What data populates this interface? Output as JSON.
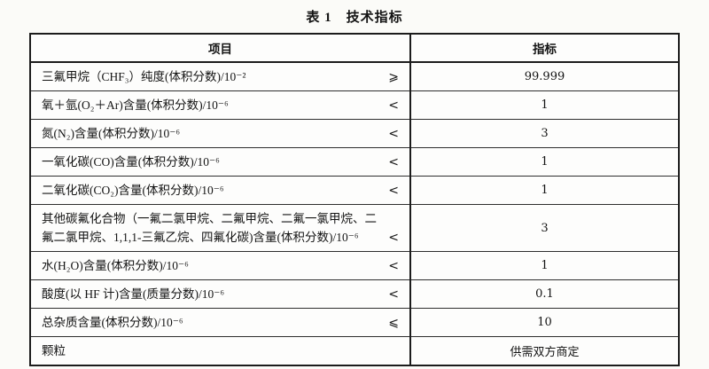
{
  "page": {
    "title": "表 1　技术指标"
  },
  "table": {
    "headers": {
      "item": "项目",
      "value": "指标"
    },
    "rows": [
      {
        "item": "三氟甲烷（CHF₃）纯度(体积分数)/10⁻²",
        "comparator": "⩾",
        "value": "99.999"
      },
      {
        "item": "氧＋氩(O₂＋Ar)含量(体积分数)/10⁻⁶",
        "comparator": "<",
        "value": "1"
      },
      {
        "item": "氮(N₂)含量(体积分数)/10⁻⁶",
        "comparator": "<",
        "value": "3"
      },
      {
        "item": "一氧化碳(CO)含量(体积分数)/10⁻⁶",
        "comparator": "<",
        "value": "1"
      },
      {
        "item": "二氧化碳(CO₂)含量(体积分数)/10⁻⁶",
        "comparator": "<",
        "value": "1"
      },
      {
        "item": "其他碳氟化合物（一氟二氯甲烷、二氟甲烷、二氟一氯甲烷、二氟二氯甲烷、1,1,1-三氟乙烷、四氟化碳)含量(体积分数)/10⁻⁶",
        "comparator": "<",
        "value": "3"
      },
      {
        "item": "水(H₂O)含量(体积分数)/10⁻⁶",
        "comparator": "<",
        "value": "1"
      },
      {
        "item": "酸度(以 HF 计)含量(质量分数)/10⁻⁶",
        "comparator": "<",
        "value": "0.1"
      },
      {
        "item": "总杂质含量(体积分数)/10⁻⁶",
        "comparator": "⩽",
        "value": "10"
      },
      {
        "item": "颗粒",
        "comparator": "",
        "value": "供需双方商定"
      }
    ]
  }
}
